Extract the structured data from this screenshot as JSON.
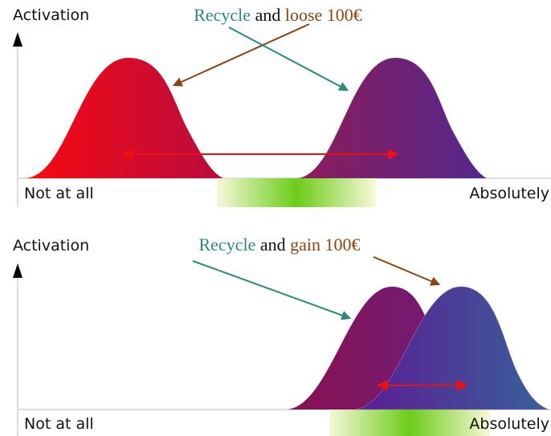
{
  "panels": [
    {
      "y_label": "Activation",
      "caption": {
        "subject": "Recycle",
        "joiner": "and",
        "money": "loose 100€"
      },
      "x_left": "Not at all",
      "x_right": "Absolutely"
    },
    {
      "y_label": "Activation",
      "caption": {
        "subject": "Recycle",
        "joiner": "and",
        "money": "gain 100€"
      },
      "x_left": "Not at all",
      "x_right": "Absolutely"
    }
  ]
}
